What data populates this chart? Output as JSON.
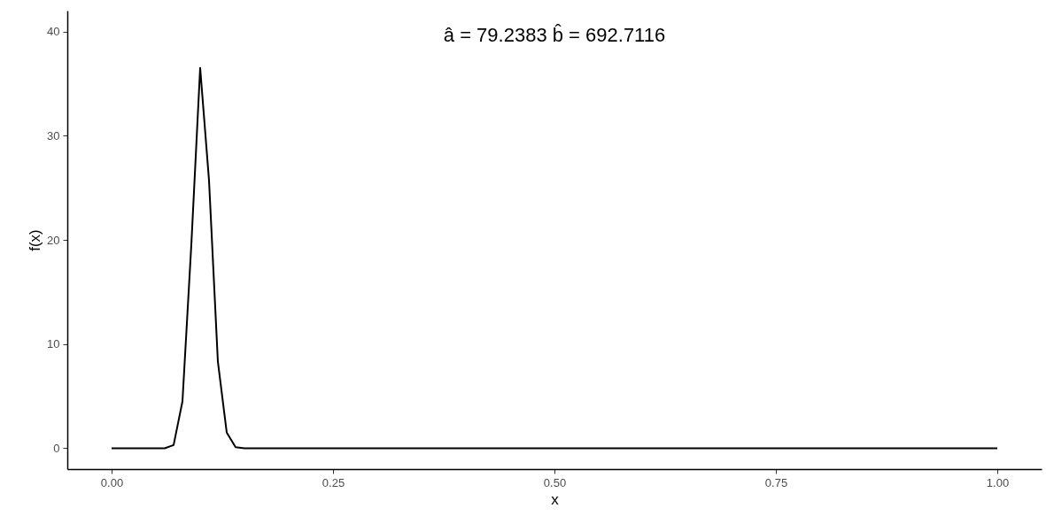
{
  "chart_data": {
    "type": "line",
    "title": "â = 79.2383 b̂ = 692.7116",
    "xlabel": "x",
    "ylabel": "f(x)",
    "x": [
      0,
      0.01,
      0.02,
      0.03,
      0.04,
      0.05,
      0.06,
      0.07,
      0.08,
      0.09,
      0.1,
      0.11,
      0.12,
      0.13,
      0.14,
      0.15,
      0.16,
      0.17,
      0.18,
      0.19,
      0.2,
      0.21,
      0.22,
      0.23,
      0.24,
      0.25,
      0.26,
      0.27,
      0.28,
      0.29,
      0.3,
      0.31,
      0.32,
      0.33,
      0.34,
      0.35,
      0.36,
      0.37,
      0.38,
      0.39,
      0.4,
      0.41,
      0.42,
      0.43,
      0.44,
      0.45,
      0.46,
      0.47,
      0.48,
      0.49,
      0.5,
      0.51,
      0.52,
      0.53,
      0.54,
      0.55,
      0.56,
      0.57,
      0.58,
      0.59,
      0.6,
      0.61,
      0.62,
      0.63,
      0.64,
      0.65,
      0.66,
      0.67,
      0.68,
      0.69,
      0.7,
      0.71,
      0.72,
      0.73,
      0.74,
      0.75,
      0.76,
      0.77,
      0.78,
      0.79,
      0.8,
      0.81,
      0.82,
      0.83,
      0.84,
      0.85,
      0.86,
      0.87,
      0.88,
      0.89,
      0.9,
      0.91,
      0.92,
      0.93,
      0.94,
      0.95,
      0.96,
      0.97,
      0.98,
      0.99,
      1
    ],
    "series": [
      {
        "color": "#000000",
        "values": [
          0,
          0,
          0,
          0,
          0,
          0,
          0,
          0.3,
          4.5,
          19.5,
          36.5,
          25.7,
          8.3,
          1.5,
          0.1,
          0,
          0,
          0,
          0,
          0,
          0,
          0,
          0,
          0,
          0,
          0,
          0,
          0,
          0,
          0,
          0,
          0,
          0,
          0,
          0,
          0,
          0,
          0,
          0,
          0,
          0,
          0,
          0,
          0,
          0,
          0,
          0,
          0,
          0,
          0,
          0,
          0,
          0,
          0,
          0,
          0,
          0,
          0,
          0,
          0,
          0,
          0,
          0,
          0,
          0,
          0,
          0,
          0,
          0,
          0,
          0,
          0,
          0,
          0,
          0,
          0,
          0,
          0,
          0,
          0,
          0,
          0,
          0,
          0,
          0,
          0,
          0,
          0,
          0,
          0,
          0,
          0,
          0,
          0,
          0,
          0,
          0,
          0,
          0,
          0,
          0
        ]
      }
    ],
    "xlim": [
      -0.05,
      1.05
    ],
    "ylim": [
      -2,
      42
    ],
    "xticks": [
      {
        "value": 0,
        "label": "0.00"
      },
      {
        "value": 0.25,
        "label": "0.25"
      },
      {
        "value": 0.5,
        "label": "0.50"
      },
      {
        "value": 0.75,
        "label": "0.75"
      },
      {
        "value": 1,
        "label": "1.00"
      }
    ],
    "yticks": [
      0,
      10,
      20,
      30,
      40
    ],
    "grid": false,
    "marker": "none",
    "line_style": "solid"
  }
}
